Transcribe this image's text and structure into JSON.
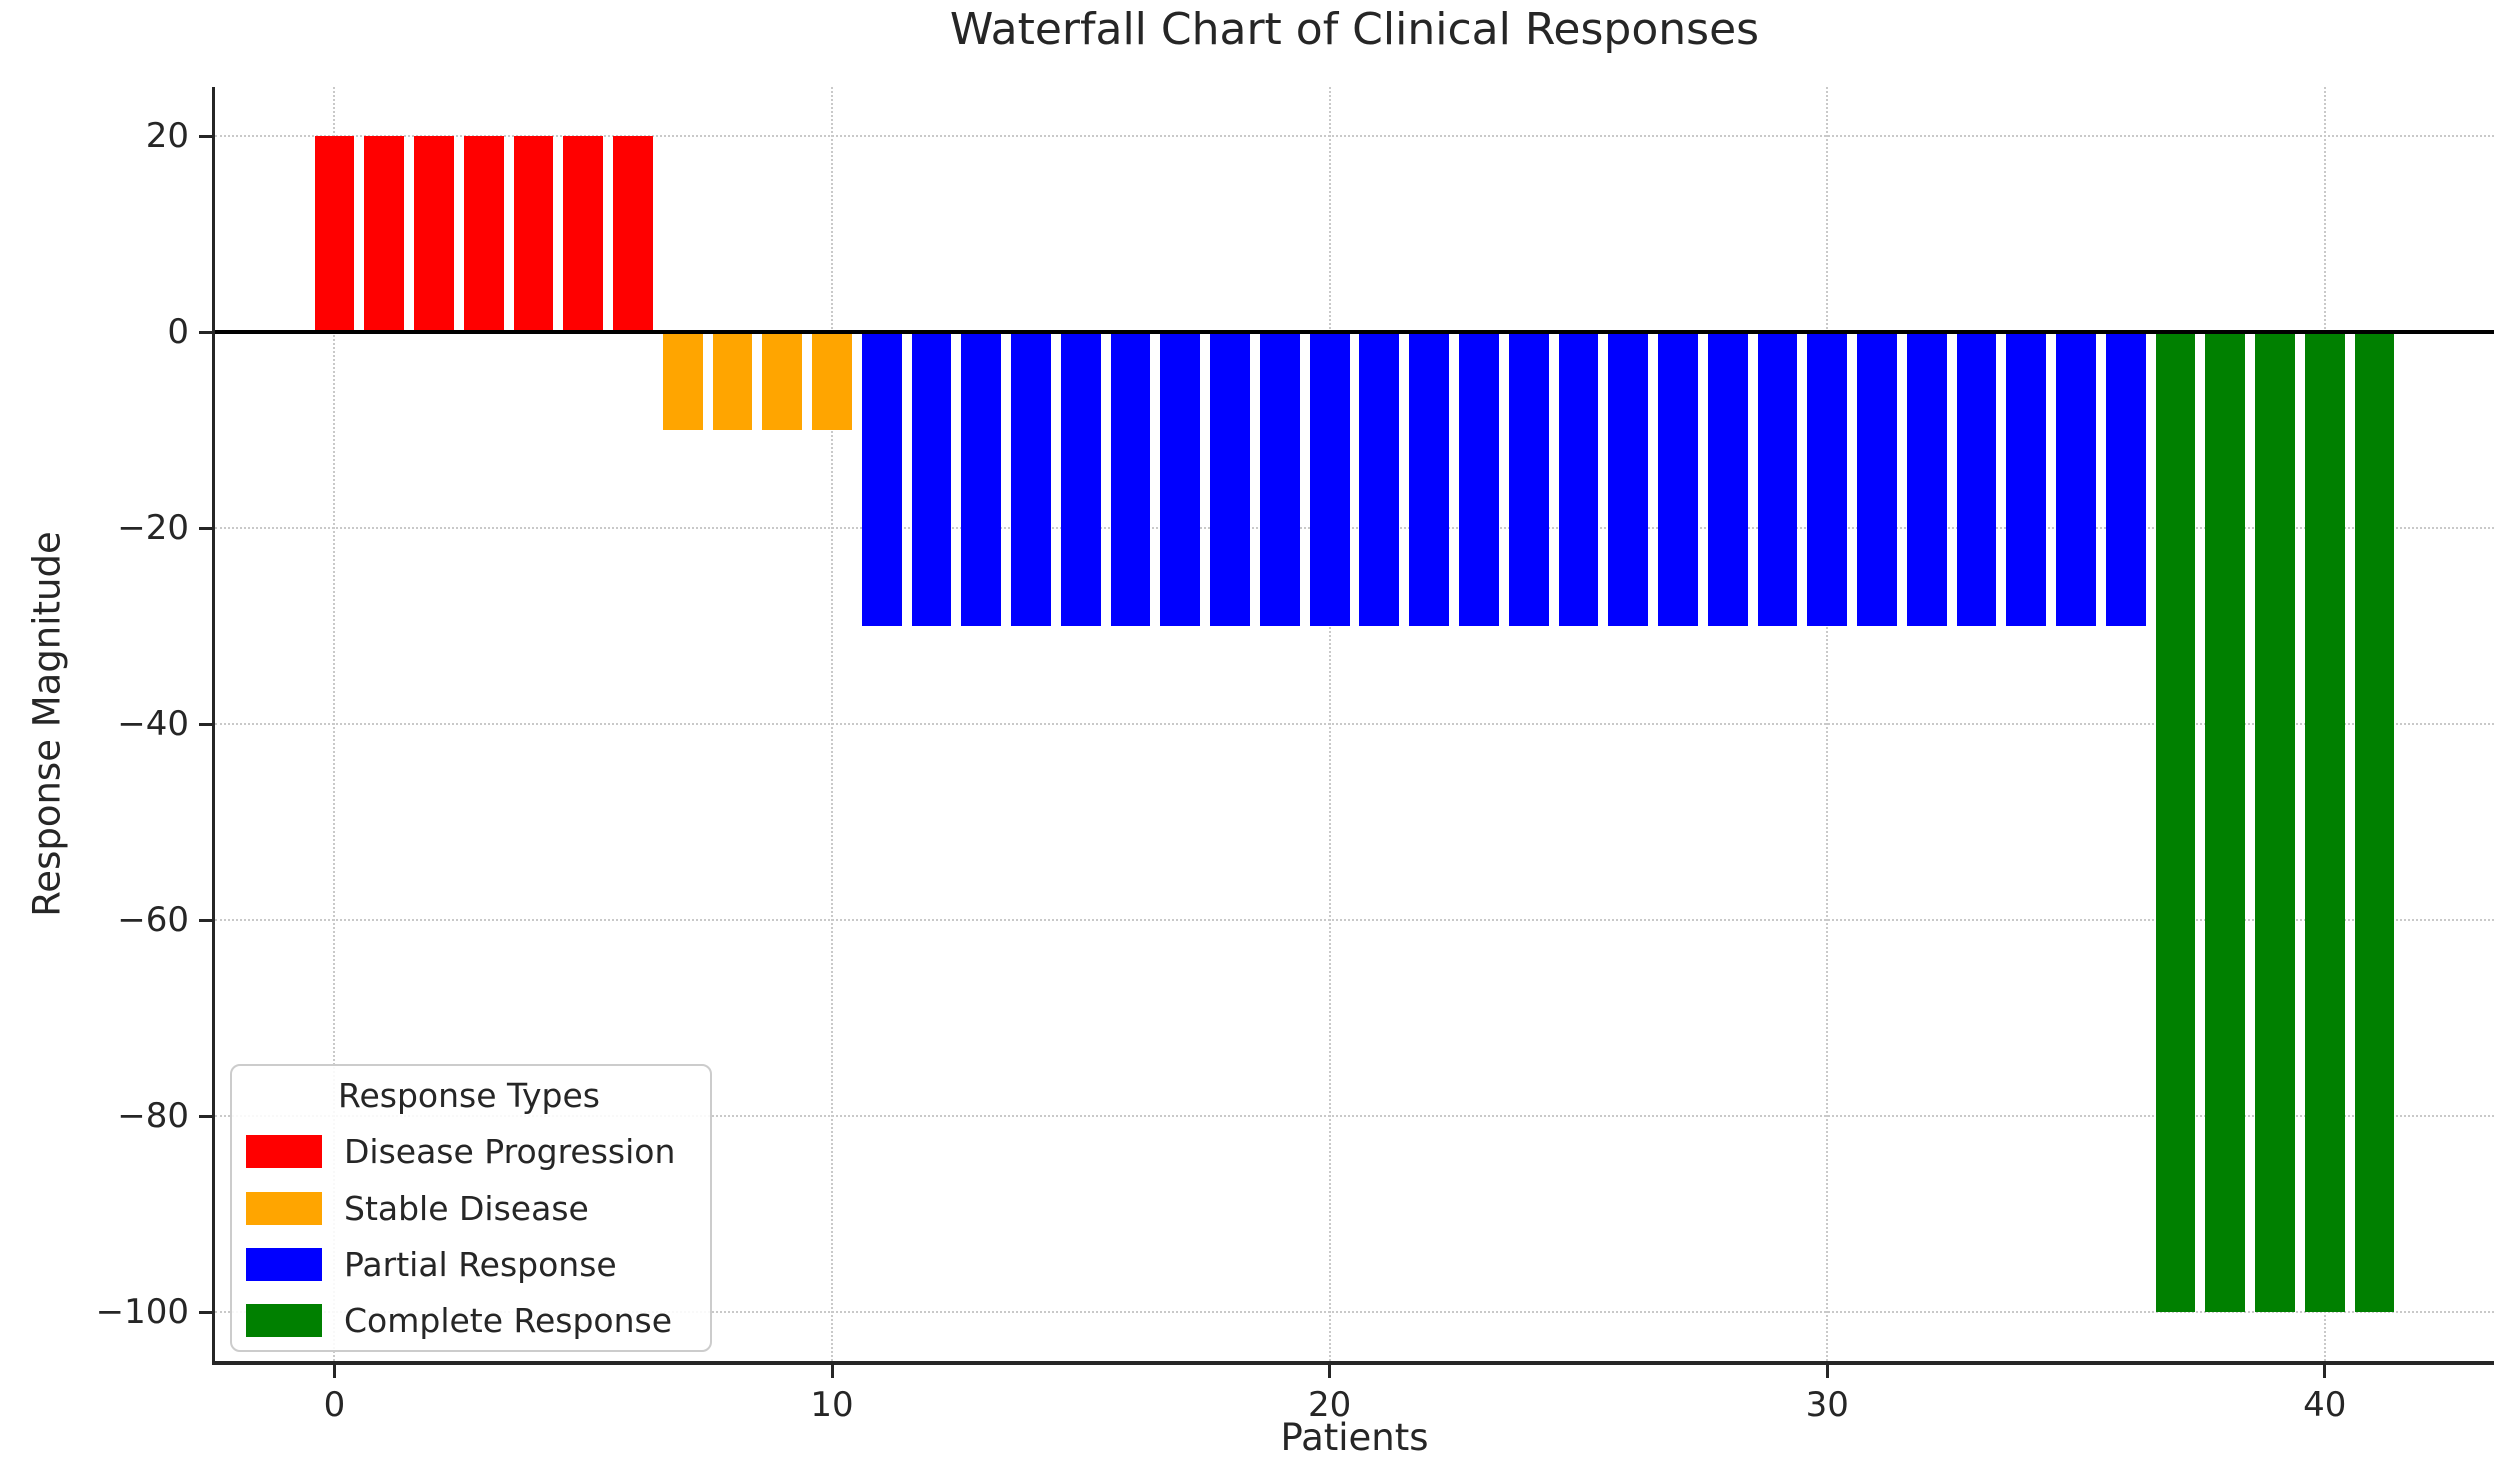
{
  "chart_data": {
    "type": "bar",
    "title": "Waterfall Chart of Clinical Responses",
    "xlabel": "Patients",
    "ylabel": "Response Magnitude",
    "xlim": [
      -2.4,
      43.4
    ],
    "ylim": [
      -105,
      25
    ],
    "xticks": [
      0,
      10,
      20,
      30,
      40
    ],
    "yticks": [
      20,
      0,
      -20,
      -40,
      -60,
      -80,
      -100
    ],
    "bar_width": 0.8,
    "grid_style": "dotted",
    "grid_on": true,
    "zero_line_color": "#000000",
    "axis_color": "#262626",
    "grid_color": "#c9c9c9",
    "values": [
      20,
      20,
      20,
      20,
      20,
      20,
      20,
      -10,
      -10,
      -10,
      -10,
      -30,
      -30,
      -30,
      -30,
      -30,
      -30,
      -30,
      -30,
      -30,
      -30,
      -30,
      -30,
      -30,
      -30,
      -30,
      -30,
      -30,
      -30,
      -30,
      -30,
      -30,
      -30,
      -30,
      -30,
      -30,
      -30,
      -100,
      -100,
      -100,
      -100,
      -100
    ],
    "groups": [
      {
        "name": "Disease Progression",
        "color": "#ff0000",
        "value": 20,
        "from": 0,
        "to": 6,
        "count": 7
      },
      {
        "name": "Stable Disease",
        "color": "#ffa500",
        "value": -10,
        "from": 7,
        "to": 10,
        "count": 4
      },
      {
        "name": "Partial Response",
        "color": "#0000ff",
        "value": -30,
        "from": 11,
        "to": 36,
        "count": 26
      },
      {
        "name": "Complete Response",
        "color": "#008000",
        "value": -100,
        "from": 37,
        "to": 41,
        "count": 5
      }
    ],
    "legend": {
      "title": "Response Types",
      "position": "lower left"
    }
  }
}
